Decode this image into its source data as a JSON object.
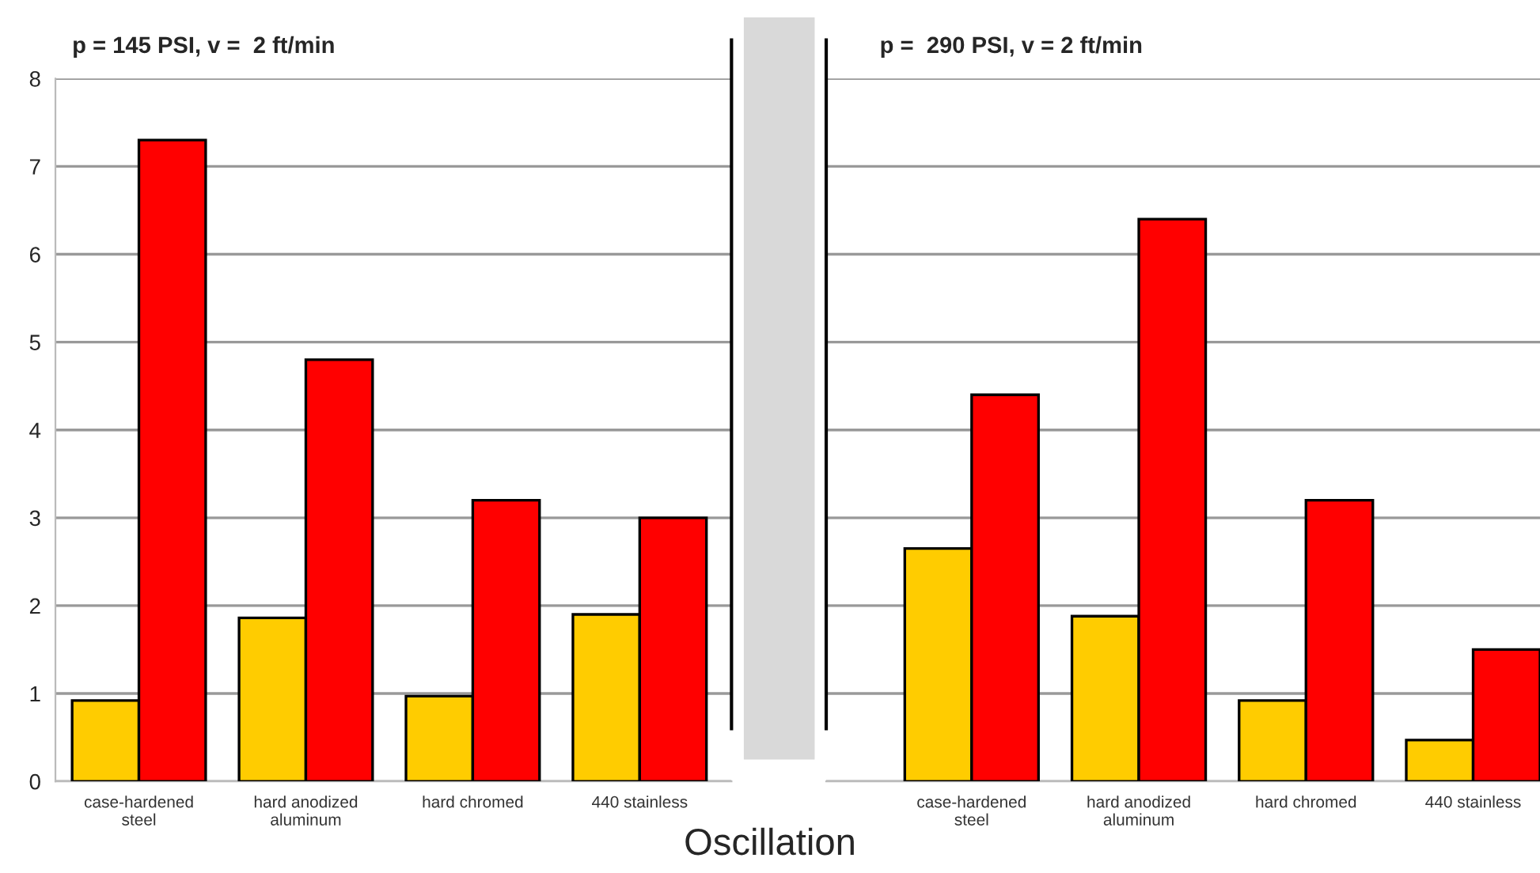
{
  "chart_data": [
    {
      "type": "bar",
      "title": "p = 145 PSI, v =  2 ft/min",
      "categories": [
        "case-hardened\nsteel",
        "hard anodized\naluminum",
        "hard chromed",
        "440 stainless"
      ],
      "series": [
        {
          "color": "#ffcc00",
          "values": [
            0.92,
            1.86,
            0.97,
            1.9
          ]
        },
        {
          "color": "#ff0000",
          "values": [
            7.3,
            4.8,
            3.2,
            3.0
          ]
        }
      ],
      "annotations": [
        "Oscillation"
      ],
      "ylim": [
        0,
        8
      ],
      "yticks": [
        0,
        1,
        2,
        3,
        4,
        5,
        6,
        7,
        8
      ],
      "grid": "y"
    },
    {
      "type": "bar",
      "title": "p =  290 PSI, v = 2 ft/min",
      "categories": [
        "case-hardened\nsteel",
        "hard anodized\naluminum",
        "hard chromed",
        "440 stainless"
      ],
      "series": [
        {
          "color": "#ffcc00",
          "values": [
            2.65,
            1.88,
            0.92,
            0.47
          ]
        },
        {
          "color": "#ff0000",
          "values": [
            4.4,
            6.4,
            3.2,
            1.5
          ]
        }
      ],
      "ylim": [
        0,
        8
      ],
      "yticks": [
        0,
        1,
        2,
        3,
        4,
        5,
        6,
        7,
        8
      ],
      "grid": "y",
      "tick_labels": "x"
    }
  ]
}
